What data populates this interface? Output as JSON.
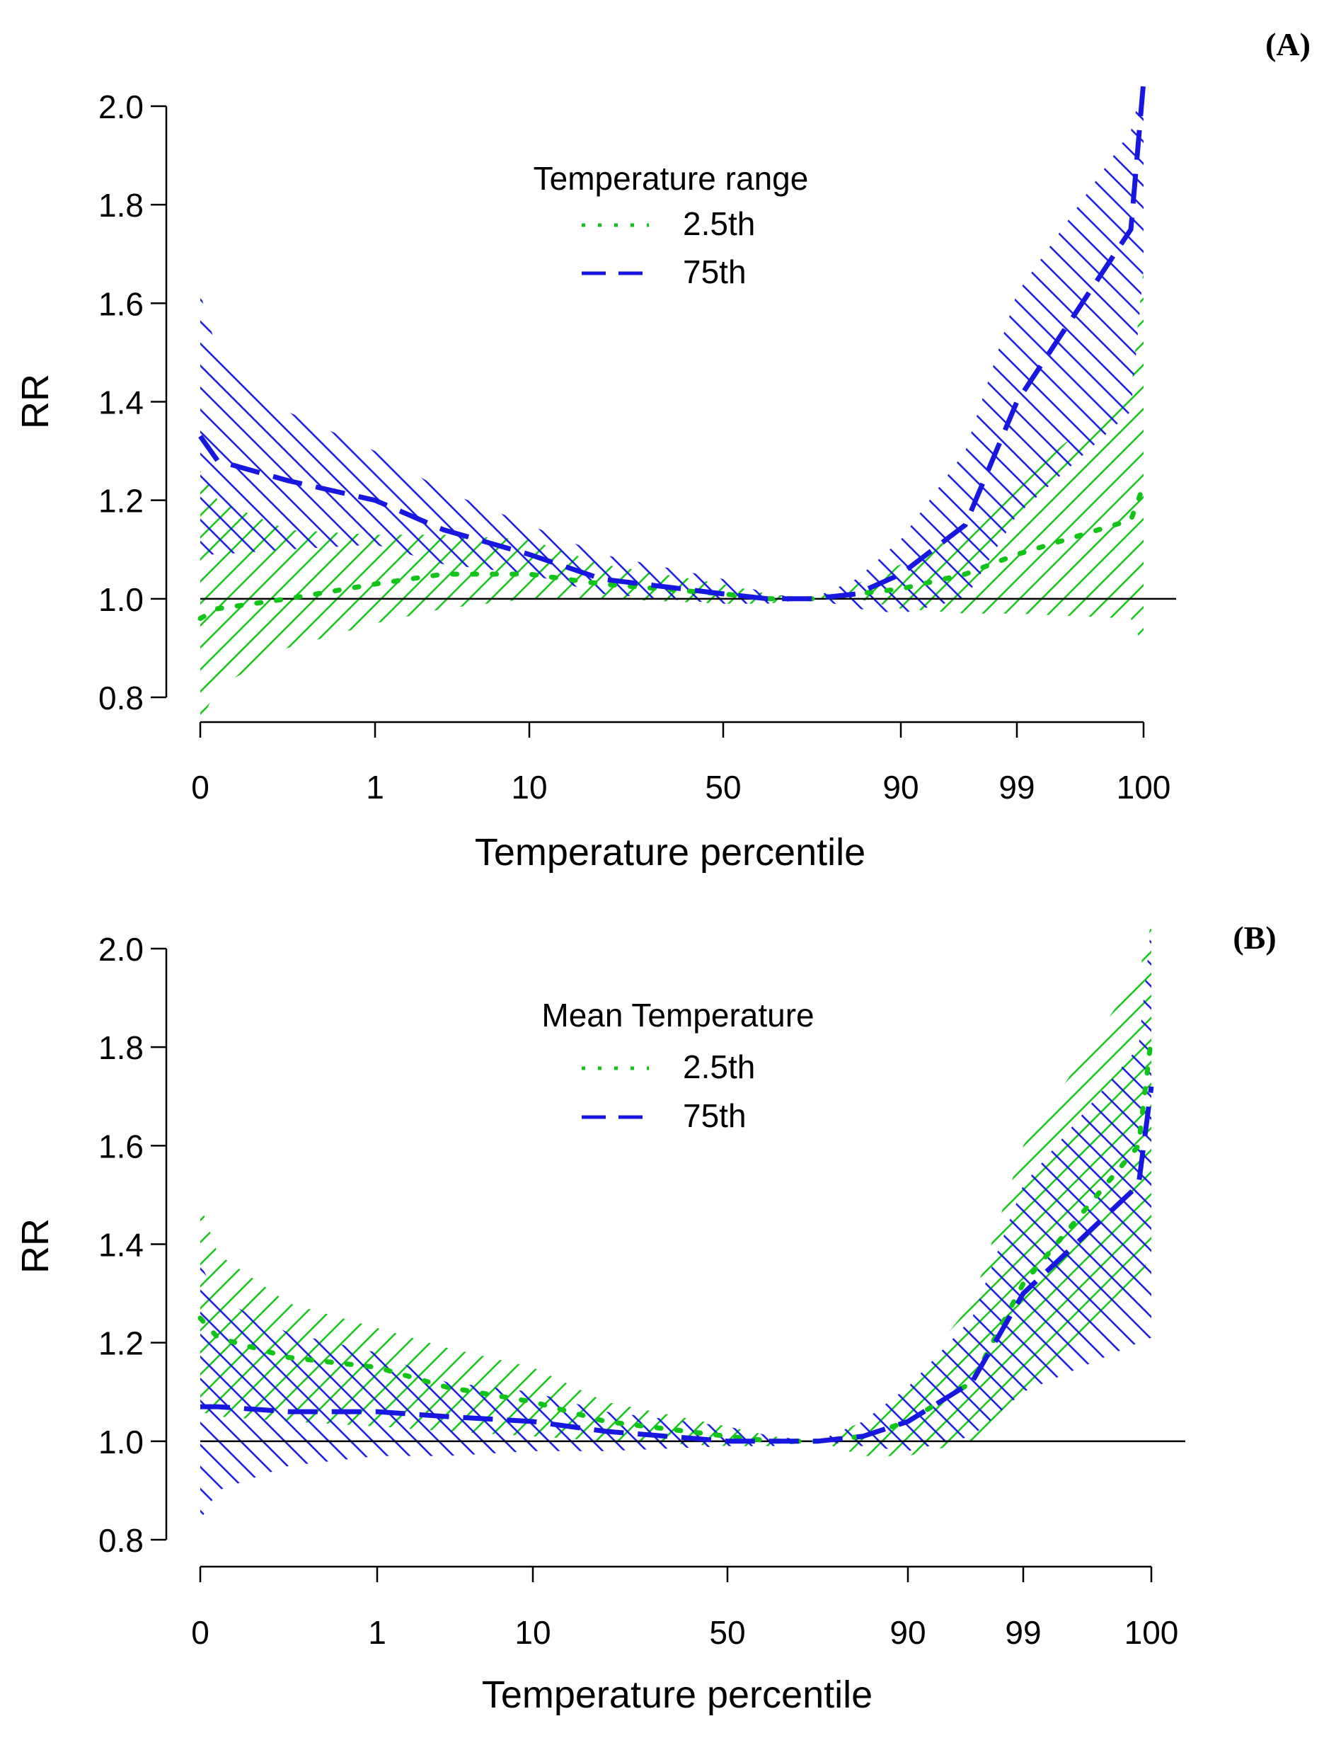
{
  "colors": {
    "green": "#11c417",
    "blue": "#1717e0",
    "axis": "#000000"
  },
  "chart_data": [
    {
      "type": "line",
      "panel_label": "(A)",
      "xlabel": "Temperature percentile",
      "ylabel": "RR",
      "ylim": [
        0.8,
        2.0
      ],
      "y_ticks": [
        0.8,
        1.0,
        1.2,
        1.4,
        1.6,
        1.8,
        2.0
      ],
      "x_ticks": [
        "0",
        "1",
        "10",
        "50",
        "90",
        "99",
        "100"
      ],
      "reference_line": 1.0,
      "legend": {
        "title": "Temperature range",
        "position": "top-center"
      },
      "x": [
        0,
        0.1,
        0.5,
        1,
        5,
        10,
        25,
        50,
        60,
        70,
        80,
        90,
        95,
        99,
        99.9,
        100
      ],
      "series": [
        {
          "name": "2.5th",
          "color": "green",
          "line_style": "dotted",
          "values": [
            0.96,
            0.98,
            1.0,
            1.03,
            1.05,
            1.05,
            1.03,
            1.01,
            1.0,
            1.0,
            1.01,
            1.02,
            1.05,
            1.09,
            1.16,
            1.23
          ],
          "lower": [
            0.75,
            0.82,
            0.9,
            0.95,
            0.98,
            1.0,
            1.0,
            0.99,
            0.99,
            1.0,
            1.0,
            0.98,
            0.97,
            0.97,
            0.96,
            0.9
          ],
          "upper": [
            1.26,
            1.2,
            1.14,
            1.13,
            1.13,
            1.12,
            1.07,
            1.03,
            1.01,
            1.0,
            1.03,
            1.07,
            1.15,
            1.24,
            1.42,
            1.67
          ]
        },
        {
          "name": "75th",
          "color": "blue",
          "line_style": "dashed",
          "values": [
            1.33,
            1.28,
            1.24,
            1.2,
            1.14,
            1.09,
            1.04,
            1.01,
            1.0,
            1.0,
            1.01,
            1.05,
            1.15,
            1.4,
            1.75,
            2.05
          ],
          "lower": [
            1.09,
            1.09,
            1.1,
            1.11,
            1.07,
            1.05,
            1.01,
            0.99,
            0.99,
            1.0,
            0.98,
            0.97,
            1.0,
            1.17,
            1.38,
            1.67
          ],
          "upper": [
            1.62,
            1.5,
            1.38,
            1.3,
            1.22,
            1.15,
            1.09,
            1.04,
            1.01,
            1.0,
            1.04,
            1.12,
            1.3,
            1.62,
            1.95,
            2.05
          ]
        }
      ]
    },
    {
      "type": "line",
      "panel_label": "(B)",
      "xlabel": "Temperature percentile",
      "ylabel": "RR",
      "ylim": [
        0.8,
        2.0
      ],
      "y_ticks": [
        0.8,
        1.0,
        1.2,
        1.4,
        1.6,
        1.8,
        2.0
      ],
      "x_ticks": [
        "0",
        "1",
        "10",
        "50",
        "90",
        "99",
        "100"
      ],
      "reference_line": 1.0,
      "legend": {
        "title": "Mean Temperature",
        "position": "top-center"
      },
      "x": [
        0,
        0.1,
        0.5,
        1,
        5,
        10,
        25,
        50,
        60,
        70,
        80,
        90,
        95,
        99,
        99.9,
        100
      ],
      "series": [
        {
          "name": "2.5th",
          "color": "green",
          "line_style": "dotted",
          "values": [
            1.25,
            1.21,
            1.17,
            1.15,
            1.11,
            1.08,
            1.04,
            1.01,
            1.0,
            1.0,
            1.01,
            1.04,
            1.12,
            1.32,
            1.6,
            1.82
          ],
          "lower": [
            1.06,
            1.05,
            1.04,
            1.03,
            1.02,
            1.01,
            1.0,
            0.99,
            0.99,
            1.0,
            0.97,
            0.97,
            1.0,
            1.1,
            1.3,
            1.4
          ],
          "upper": [
            1.48,
            1.38,
            1.28,
            1.23,
            1.19,
            1.15,
            1.08,
            1.03,
            1.01,
            1.0,
            1.04,
            1.12,
            1.28,
            1.6,
            1.95,
            2.05
          ]
        },
        {
          "name": "75th",
          "color": "blue",
          "line_style": "dashed",
          "values": [
            1.07,
            1.07,
            1.06,
            1.06,
            1.05,
            1.04,
            1.02,
            1.0,
            1.0,
            1.0,
            1.01,
            1.04,
            1.12,
            1.3,
            1.52,
            1.72
          ],
          "lower": [
            0.84,
            0.9,
            0.95,
            0.97,
            0.97,
            0.98,
            0.98,
            0.99,
            0.99,
            1.0,
            0.99,
            0.98,
            1.01,
            1.1,
            1.2,
            1.21
          ],
          "upper": [
            1.36,
            1.29,
            1.22,
            1.18,
            1.12,
            1.1,
            1.06,
            1.03,
            1.01,
            1.0,
            1.04,
            1.11,
            1.25,
            1.52,
            1.8,
            2.05
          ]
        }
      ]
    }
  ]
}
